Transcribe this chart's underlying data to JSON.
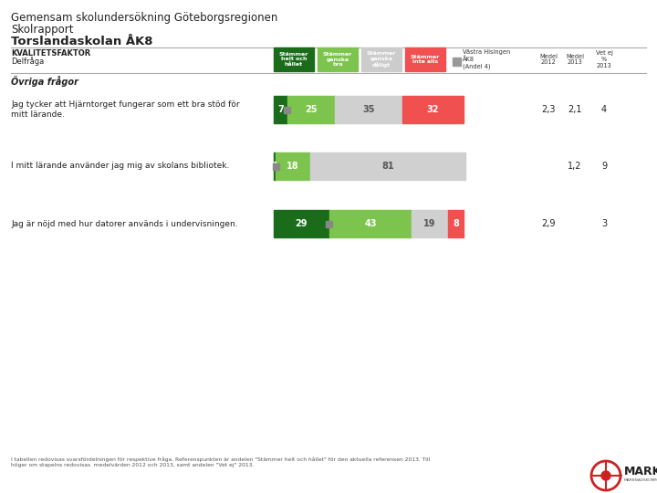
{
  "title_line1": "Gemensam skolundersökning Göteborgsregionen",
  "title_line2": "Skolrapport",
  "title_line3": "Torslandaskolan ÅK8",
  "legend_labels": [
    "Stämmer\nhelt och\nhållet",
    "Stämmer\nganska\nbra",
    "Stämmer\nganska\ndåligt",
    "Stämmer\ninte alls"
  ],
  "legend_colors": [
    "#1a6b1a",
    "#7dc44e",
    "#cccccc",
    "#f05050"
  ],
  "ref_label": "Västra Hisingen\nÅK8\n(Andel 4)",
  "ref_color": "#888888",
  "section_label": "Övriga frågor",
  "questions": [
    "Jag tycker att Hjärntorget fungerar som ett bra stöd för\nmitt lärande.",
    "I mitt lärande använder jag mig av skolans bibliotek.",
    "Jag är nöjd med hur datorer används i undervisningen."
  ],
  "bar_data": [
    [
      7,
      25,
      35,
      32
    ],
    [
      1,
      18,
      81,
      0
    ],
    [
      29,
      43,
      19,
      8
    ]
  ],
  "medel_2012": [
    "2,3",
    null,
    "2,9"
  ],
  "medel_2013": [
    "2,1",
    "1,2",
    null
  ],
  "vetej_2013": [
    "4",
    "9",
    "3"
  ],
  "bar_colors": [
    "#1a6b1a",
    "#7dc44e",
    "#d0d0d0",
    "#f05050"
  ],
  "bg_color": "#ffffff",
  "text_color": "#333333",
  "footnote": "I tabellen redovisas svarsfördelningen för respektive fråga. Referenspunkten är andelen \"Stämmer helt och hållet\" för den aktuella referensen 2013. Till\nhöger om stapelns redovisas  medelvärden 2012 och 2013, samt andelen \"Vet ej\" 2013."
}
